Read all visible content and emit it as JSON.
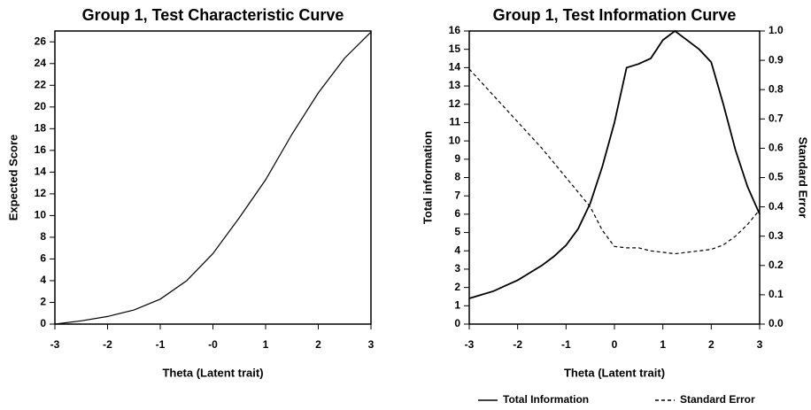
{
  "chart_data": [
    {
      "type": "line",
      "title": "Group 1, Test Characteristic Curve",
      "xlabel": "Theta (Latent trait)",
      "ylabel": "Expected Score",
      "x": [
        -3,
        -2.5,
        -2,
        -1.5,
        -1,
        -0.5,
        0,
        0.5,
        1,
        1.5,
        2,
        2.5,
        3
      ],
      "series": [
        {
          "name": "Expected Score",
          "color": "#000000",
          "dash": false,
          "values": [
            0,
            0.3,
            0.7,
            1.3,
            2.3,
            4.0,
            6.5,
            9.8,
            13.3,
            17.5,
            21.3,
            24.5,
            26.9
          ]
        }
      ],
      "xlim": [
        -3,
        3
      ],
      "xticks": [
        -3,
        -2,
        -1,
        {
          "value": 0,
          "label": "-0"
        },
        1,
        2,
        3
      ],
      "ylim": [
        0,
        27
      ],
      "yticks": [
        0,
        2,
        4,
        6,
        8,
        10,
        12,
        14,
        16,
        18,
        20,
        22,
        24,
        26
      ]
    },
    {
      "type": "line",
      "title": "Group 1, Test Information Curve",
      "xlabel": "Theta (Latent trait)",
      "ylabel": "Total information",
      "y2label": "Standard Error",
      "legend": "bottom",
      "x": [
        -3,
        -2.75,
        -2.5,
        -2.25,
        -2,
        -1.75,
        -1.5,
        -1.25,
        -1,
        -0.75,
        -0.5,
        -0.25,
        0,
        0.25,
        0.5,
        0.75,
        1,
        1.25,
        1.5,
        1.75,
        2,
        2.25,
        2.5,
        2.75,
        3
      ],
      "series": [
        {
          "name": "Total Information",
          "color": "#000000",
          "dash": false,
          "values": [
            1.4,
            1.6,
            1.8,
            2.1,
            2.4,
            2.8,
            3.2,
            3.7,
            4.3,
            5.2,
            6.6,
            8.6,
            11.0,
            14.0,
            14.2,
            14.5,
            15.5,
            16.0,
            15.5,
            15.0,
            14.3,
            12.0,
            9.5,
            7.5,
            6.0
          ]
        },
        {
          "name": "Standard Error",
          "color": "#000000",
          "dash": true,
          "axis": "y2",
          "values": [
            0.87,
            0.825,
            0.78,
            0.735,
            0.69,
            0.645,
            0.6,
            0.55,
            0.5,
            0.45,
            0.4,
            0.32,
            0.265,
            0.26,
            0.26,
            0.25,
            0.245,
            0.24,
            0.245,
            0.25,
            0.255,
            0.27,
            0.3,
            0.34,
            0.39
          ]
        }
      ],
      "xlim": [
        -3,
        3
      ],
      "xticks": [
        -3,
        -2,
        -1,
        0,
        1,
        2,
        3
      ],
      "ylim": [
        0,
        16
      ],
      "yticks": [
        0,
        1,
        2,
        3,
        4,
        5,
        6,
        7,
        8,
        9,
        10,
        11,
        12,
        13,
        14,
        15,
        16
      ],
      "y2lim": [
        0,
        1
      ],
      "y2ticks": [
        {
          "value": 0,
          "label": "0.0"
        },
        0.1,
        0.2,
        0.3,
        0.4,
        0.5,
        0.6,
        0.7,
        0.8,
        0.9,
        {
          "value": 1,
          "label": "1.0"
        }
      ]
    }
  ]
}
